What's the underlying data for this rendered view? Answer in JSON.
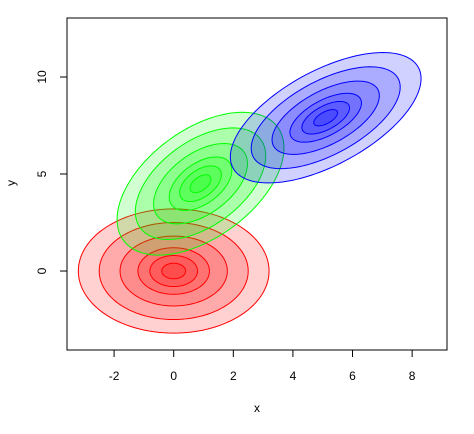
{
  "chart_data": {
    "type": "contour",
    "xlabel": "x",
    "ylabel": "y",
    "xlim": [
      -3.58,
      9.17
    ],
    "ylim": [
      -4.07,
      13.04
    ],
    "xticks": [
      -2,
      0,
      2,
      4,
      6,
      8
    ],
    "yticks": [
      0,
      5,
      10
    ],
    "series": [
      {
        "color": "#ff0000",
        "mean": [
          0,
          0
        ],
        "sd": [
          1.0,
          1.0
        ],
        "rho": 0,
        "levels": [
          3.2,
          2.5,
          1.8,
          1.2,
          0.8,
          0.4
        ]
      },
      {
        "color": "#00ff00",
        "mean": [
          0.9,
          4.5
        ],
        "sd": [
          0.875,
          1.15
        ],
        "rho": 0.5,
        "levels": [
          3.2,
          2.5,
          1.8,
          1.2,
          0.8,
          0.4
        ]
      },
      {
        "color": "#0000ff",
        "mean": [
          5.1,
          7.9
        ],
        "sd": [
          1.0,
          1.05
        ],
        "rho": 0.6,
        "levels": [
          3.2,
          2.5,
          1.8,
          1.2,
          0.8,
          0.4
        ]
      }
    ]
  }
}
